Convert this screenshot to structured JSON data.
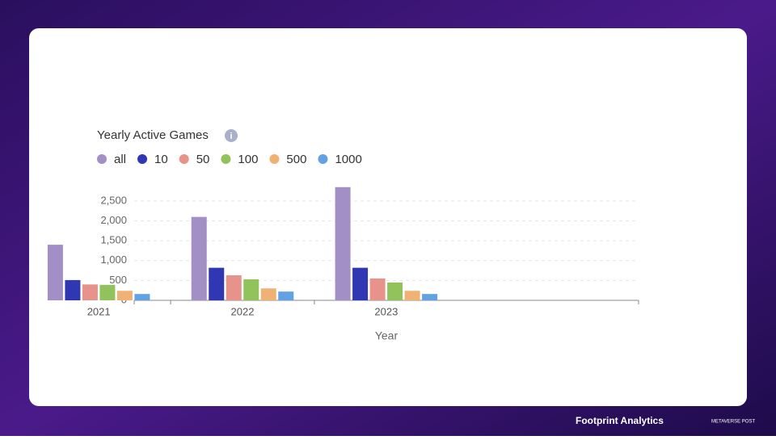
{
  "chart_data": {
    "type": "bar",
    "title": "Yearly Active Games",
    "x_label": "Year",
    "categories": [
      "2021",
      "2022",
      "2023"
    ],
    "series": [
      {
        "name": "all",
        "color": "#a28fc6",
        "values": [
          1400,
          2100,
          2850
        ]
      },
      {
        "name": "10",
        "color": "#3037b2",
        "values": [
          510,
          820,
          820
        ]
      },
      {
        "name": "50",
        "color": "#e8928c",
        "values": [
          400,
          630,
          550
        ]
      },
      {
        "name": "100",
        "color": "#92c25c",
        "values": [
          390,
          530,
          450
        ]
      },
      {
        "name": "500",
        "color": "#f0b274",
        "values": [
          240,
          300,
          240
        ]
      },
      {
        "name": "1000",
        "color": "#62a2e2",
        "values": [
          160,
          220,
          160
        ]
      }
    ],
    "ylim": [
      0,
      3000
    ],
    "yticks": [
      0,
      500,
      {
        "value": 1000,
        "label": "1,000"
      },
      {
        "value": 1500,
        "label": "1,500"
      },
      {
        "value": 2000,
        "label": "2,000"
      },
      {
        "value": 2500,
        "label": "2,500"
      }
    ],
    "grid": true,
    "legend": "top-left"
  },
  "footer": {
    "brand": "Footprint Analytics",
    "partner": "METAVERSE POST"
  }
}
